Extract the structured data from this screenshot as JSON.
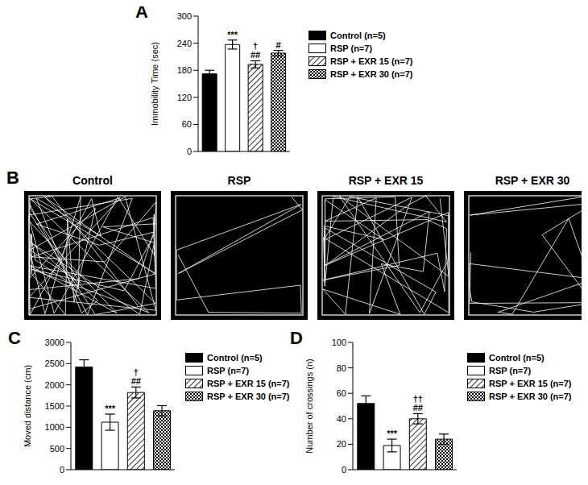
{
  "chart_data": [
    {
      "title": "A",
      "type": "bar",
      "y_label": "Immobility Time (sec)",
      "categories": [
        "Control (n=5)",
        "RSP (n=7)",
        "RSP + EXR 15 (n=7)",
        "RSP + EXR 30 (n=7)"
      ],
      "values": [
        172,
        237,
        193,
        218
      ],
      "errors": [
        8,
        10,
        8,
        6
      ],
      "annotations": [
        [],
        [
          "***"
        ],
        [
          "†",
          "##"
        ],
        [
          "#"
        ]
      ],
      "colors": [
        "#000000",
        "#ffffff",
        "#ffffff",
        "#ffffff"
      ],
      "ylim": [
        0,
        300
      ],
      "yticks": [
        0,
        60,
        120,
        180,
        240,
        300
      ],
      "legend": "right",
      "tick_labels": "y"
    },
    {
      "title": "C",
      "type": "bar",
      "y_label": "Moved distance (cm)",
      "categories": [
        "Control (n=5)",
        "RSP (n=7)",
        "RSP + EXR 15 (n=7)",
        "RSP + EXR 30 (n=7)"
      ],
      "values": [
        2420,
        1120,
        1820,
        1390
      ],
      "errors": [
        170,
        190,
        130,
        120
      ],
      "annotations": [
        [],
        [
          "***"
        ],
        [
          "†",
          "##"
        ],
        []
      ],
      "colors": [
        "#000000",
        "#ffffff",
        "#ffffff",
        "#ffffff"
      ],
      "ylim": [
        0,
        3000
      ],
      "yticks": [
        0,
        500,
        1000,
        1500,
        2000,
        2500,
        3000
      ],
      "legend": "right",
      "tick_labels": "y"
    },
    {
      "title": "D",
      "type": "bar",
      "y_label": "Number of crossings (n)",
      "categories": [
        "Control (n=5)",
        "RSP (n=7)",
        "RSP + EXR 15 (n=7)",
        "RSP + EXR 30 (n=7)"
      ],
      "values": [
        52,
        19,
        40,
        24
      ],
      "errors": [
        6,
        5,
        4,
        4
      ],
      "annotations": [
        [],
        [
          "***"
        ],
        [
          "††",
          "##"
        ],
        []
      ],
      "colors": [
        "#000000",
        "#ffffff",
        "#ffffff",
        "#ffffff"
      ],
      "ylim": [
        0,
        100
      ],
      "yticks": [
        0,
        20,
        40,
        60,
        80,
        100
      ],
      "legend": "right",
      "tick_labels": "y"
    }
  ],
  "track_figure": {
    "title": "B",
    "groups": [
      "Control",
      "RSP",
      "RSP + EXR 15",
      "RSP + EXR 30"
    ]
  }
}
